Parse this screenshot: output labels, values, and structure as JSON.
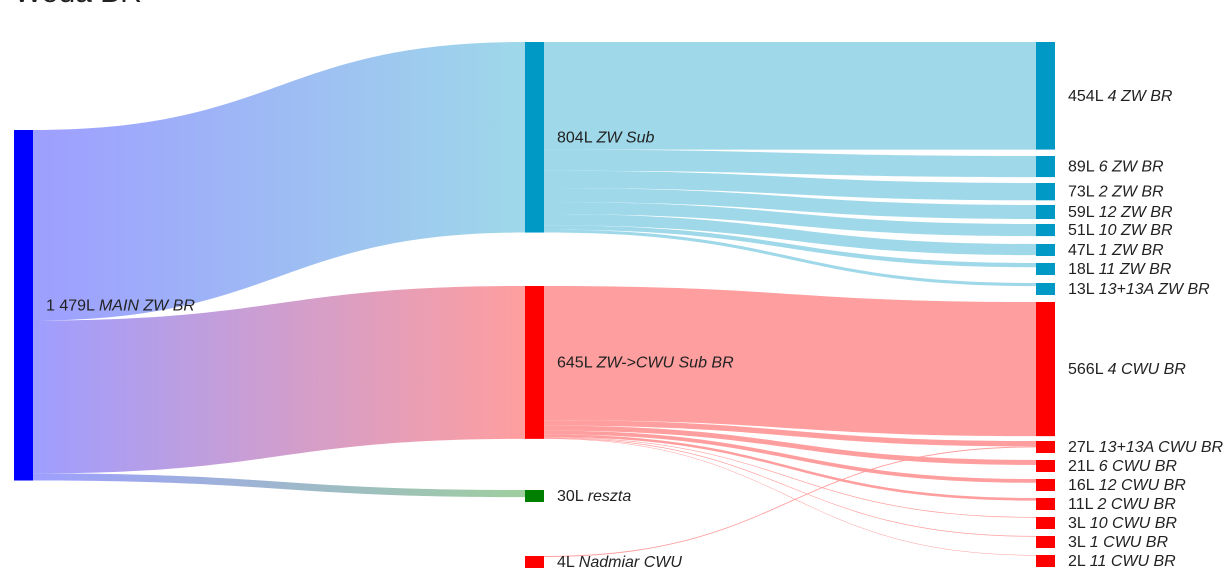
{
  "chart_data": {
    "type": "sankey",
    "title": "Woda BR",
    "nodes": [
      {
        "name": "MAIN ZW BR",
        "value": 1479,
        "value_label": "1 479L",
        "color": "#0000ff"
      },
      {
        "name": "ZW Sub",
        "value": 804,
        "value_label": "804L",
        "color": "#0099c6"
      },
      {
        "name": "ZW->CWU Sub BR",
        "value": 645,
        "value_label": "645L",
        "color": "#ff0000"
      },
      {
        "name": "reszta",
        "value": 30,
        "value_label": "30L",
        "color": "#008000"
      },
      {
        "name": "Nadmiar CWU",
        "value": 4,
        "value_label": "4L",
        "color": "#ff0000"
      },
      {
        "name": "4 ZW BR",
        "value": 454,
        "value_label": "454L",
        "color": "#0099c6"
      },
      {
        "name": "6 ZW BR",
        "value": 89,
        "value_label": "89L",
        "color": "#0099c6"
      },
      {
        "name": "2 ZW BR",
        "value": 73,
        "value_label": "73L",
        "color": "#0099c6"
      },
      {
        "name": "12 ZW BR",
        "value": 59,
        "value_label": "59L",
        "color": "#0099c6"
      },
      {
        "name": "10 ZW BR",
        "value": 51,
        "value_label": "51L",
        "color": "#0099c6"
      },
      {
        "name": "1 ZW BR",
        "value": 47,
        "value_label": "47L",
        "color": "#0099c6"
      },
      {
        "name": "11 ZW BR",
        "value": 18,
        "value_label": "18L",
        "color": "#0099c6"
      },
      {
        "name": "13+13A ZW BR",
        "value": 13,
        "value_label": "13L",
        "color": "#0099c6"
      },
      {
        "name": "4 CWU BR",
        "value": 566,
        "value_label": "566L",
        "color": "#ff0000"
      },
      {
        "name": "13+13A CWU BR",
        "value": 27,
        "value_label": "27L",
        "color": "#ff0000"
      },
      {
        "name": "6 CWU BR",
        "value": 21,
        "value_label": "21L",
        "color": "#ff0000"
      },
      {
        "name": "12 CWU BR",
        "value": 16,
        "value_label": "16L",
        "color": "#ff0000"
      },
      {
        "name": "2 CWU BR",
        "value": 11,
        "value_label": "11L",
        "color": "#ff0000"
      },
      {
        "name": "10 CWU BR",
        "value": 3,
        "value_label": "3L",
        "color": "#ff0000"
      },
      {
        "name": "1 CWU BR",
        "value": 3,
        "value_label": "3L",
        "color": "#ff0000"
      },
      {
        "name": "11 CWU BR",
        "value": 2,
        "value_label": "2L",
        "color": "#ff0000"
      }
    ],
    "links": [
      {
        "source": 0,
        "target": 1,
        "value": 804
      },
      {
        "source": 0,
        "target": 2,
        "value": 645
      },
      {
        "source": 0,
        "target": 3,
        "value": 30
      },
      {
        "source": 1,
        "target": 5,
        "value": 454
      },
      {
        "source": 1,
        "target": 6,
        "value": 89
      },
      {
        "source": 1,
        "target": 7,
        "value": 73
      },
      {
        "source": 1,
        "target": 8,
        "value": 59
      },
      {
        "source": 1,
        "target": 9,
        "value": 51
      },
      {
        "source": 1,
        "target": 10,
        "value": 47
      },
      {
        "source": 1,
        "target": 11,
        "value": 18
      },
      {
        "source": 1,
        "target": 12,
        "value": 13
      },
      {
        "source": 2,
        "target": 13,
        "value": 566
      },
      {
        "source": 2,
        "target": 14,
        "value": 23
      },
      {
        "source": 2,
        "target": 15,
        "value": 21
      },
      {
        "source": 2,
        "target": 16,
        "value": 16
      },
      {
        "source": 2,
        "target": 17,
        "value": 11
      },
      {
        "source": 2,
        "target": 18,
        "value": 3
      },
      {
        "source": 2,
        "target": 19,
        "value": 3
      },
      {
        "source": 2,
        "target": 20,
        "value": 2
      },
      {
        "source": 4,
        "target": 14,
        "value": 4
      }
    ]
  }
}
